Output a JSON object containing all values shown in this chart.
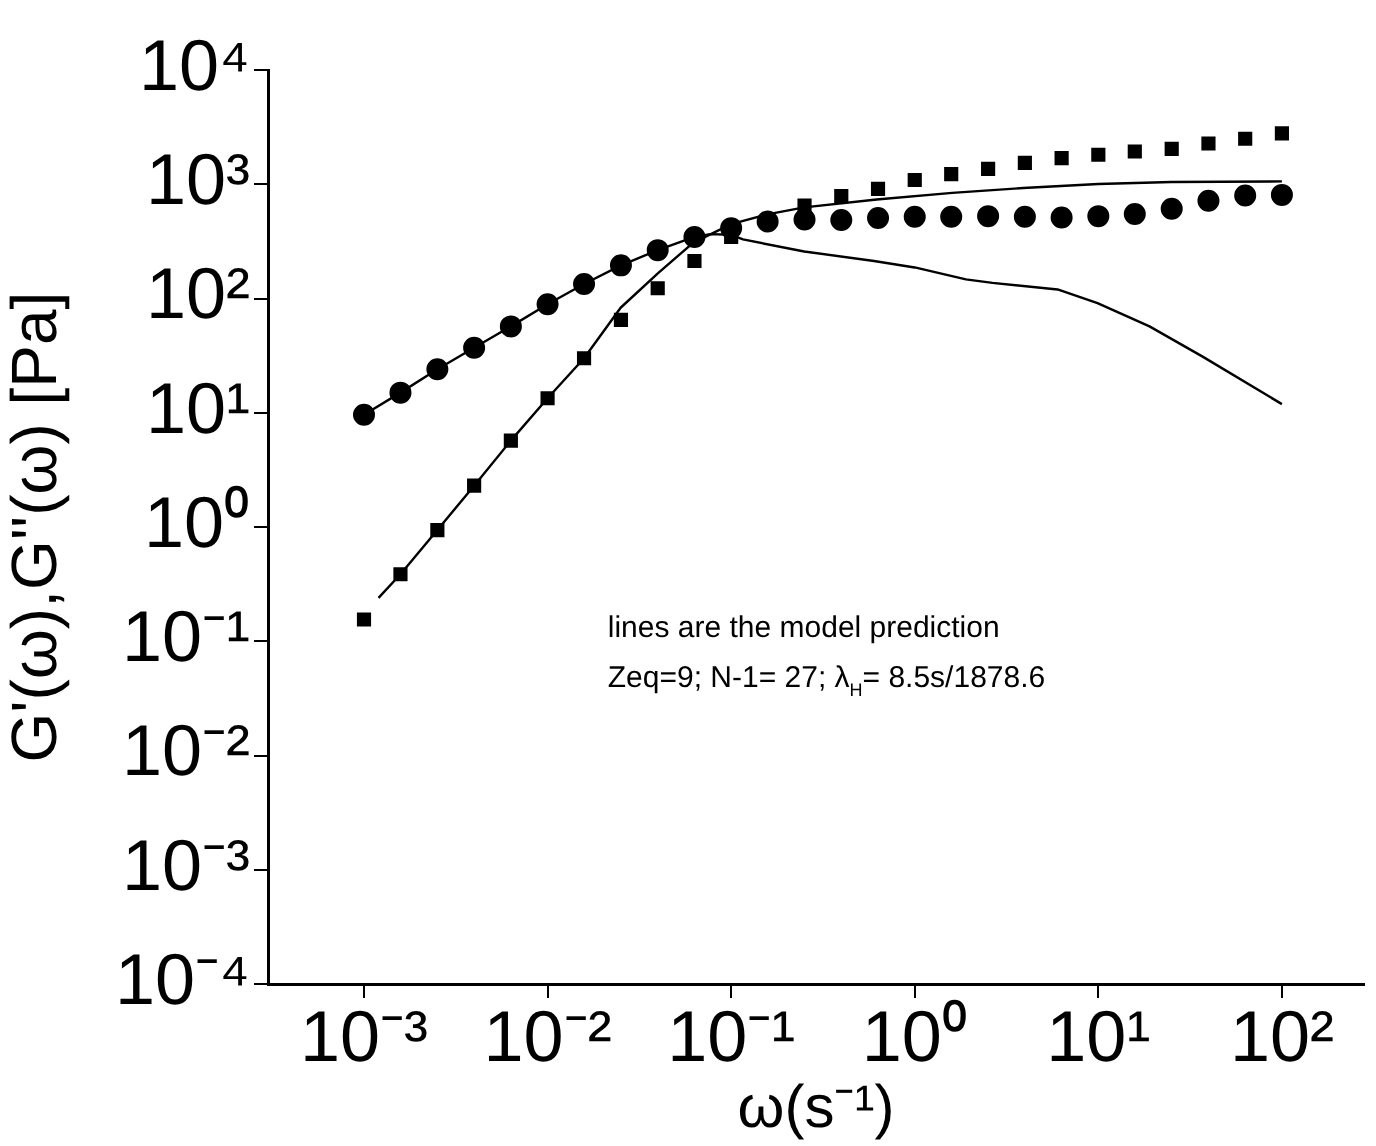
{
  "chart_data": {
    "type": "scatter",
    "xlabel": "ω(s⁻¹)",
    "ylabel": "G'(ω),G''(ω) [Pa]",
    "log": "xy",
    "grid": false,
    "legend": false,
    "xlim": [
      0.000316,
      280
    ],
    "xticks": [
      {
        "value": 0.001,
        "label": "10⁻³"
      },
      {
        "value": 0.01,
        "label": "10⁻²"
      },
      {
        "value": 0.1,
        "label": "10⁻¹"
      },
      {
        "value": 1,
        "label": "10⁰"
      },
      {
        "value": 10,
        "label": "10¹"
      },
      {
        "value": 100,
        "label": "10²"
      }
    ],
    "ylim": [
      0.0001,
      10000
    ],
    "yticks": [
      {
        "value": 0.0001,
        "label": "10⁻⁴"
      },
      {
        "value": 0.001,
        "label": "10⁻³"
      },
      {
        "value": 0.01,
        "label": "10⁻²"
      },
      {
        "value": 0.1,
        "label": "10⁻¹"
      },
      {
        "value": 1,
        "label": "10⁰"
      },
      {
        "value": 10,
        "label": "10¹"
      },
      {
        "value": 100,
        "label": "10²"
      },
      {
        "value": 1000,
        "label": "10³"
      },
      {
        "value": 10000,
        "label": "10⁴"
      }
    ],
    "annotations": [
      "lines are the model prediction",
      "Zeq=9; N-1= 27; λ$_{H}$= 8.5s/1878.6"
    ],
    "x": [
      0.001,
      0.00158,
      0.00251,
      0.00398,
      0.00631,
      0.01,
      0.0158,
      0.0251,
      0.0398,
      0.0631,
      0.1,
      0.158,
      0.251,
      0.398,
      0.631,
      1,
      1.58,
      2.51,
      3.98,
      6.31,
      10,
      15.8,
      25.1,
      39.8,
      63.1,
      100
    ],
    "series": [
      {
        "marker": "circle",
        "color": "#000000",
        "values": [
          9.6,
          15,
          24,
          37,
          57,
          89,
          134,
          195,
          265,
          346,
          413,
          472,
          492,
          486,
          506,
          519,
          519,
          526,
          519,
          512,
          526,
          548,
          610,
          716,
          798,
          807
        ]
      },
      {
        "marker": "square",
        "color": "#000000",
        "values": [
          0.155,
          0.386,
          0.94,
          2.3,
          5.7,
          13.4,
          30,
          65,
          123,
          213,
          346,
          null,
          652,
          789,
          912,
          1089,
          1227,
          1365,
          1538,
          1694,
          1811,
          1936,
          2042,
          2275,
          2500,
          2786
        ]
      },
      {
        "type": "line",
        "marker": "none",
        "color": "#000000",
        "x": [
          0.0012,
          0.00158,
          0.00251,
          0.00398,
          0.00631,
          0.01,
          0.0158,
          0.025,
          0.04,
          0.062,
          0.1,
          0.16,
          0.25,
          0.62,
          1.6,
          3.9,
          10,
          25,
          100
        ],
        "values": [
          0.24,
          0.386,
          0.94,
          2.3,
          5.7,
          13.4,
          30,
          83,
          167,
          307,
          448,
          548,
          627,
          736,
          841,
          927,
          1005,
          1045,
          1059
        ]
      },
      {
        "type": "line",
        "marker": "none",
        "color": "#000000",
        "x": [
          0.001,
          0.00158,
          0.00251,
          0.00398,
          0.00631,
          0.01,
          0.0158,
          0.0251,
          0.0398,
          0.0631,
          0.077,
          0.1,
          0.116,
          0.25,
          0.6,
          1,
          1.9,
          2.65,
          6,
          9.9,
          19,
          37,
          100
        ],
        "values": [
          9.6,
          15,
          24,
          37,
          57,
          89,
          134,
          195,
          265,
          346,
          366,
          361,
          329,
          258,
          213,
          187,
          147,
          137,
          120,
          91,
          57,
          31,
          11.9
        ]
      }
    ]
  }
}
